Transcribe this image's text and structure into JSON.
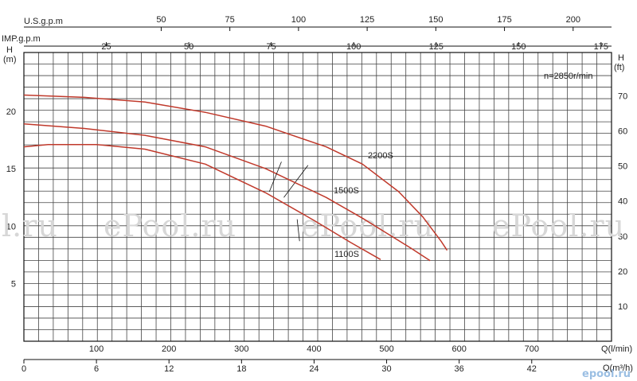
{
  "chart_data": {
    "type": "line",
    "speed_note": "n=2850r/min",
    "axes": {
      "top_outer_label": "U.S.g.p.m",
      "top_outer_ticks": [
        "50",
        "75",
        "100",
        "125",
        "150",
        "175",
        "200"
      ],
      "top_inner_label": "IMP.g.p.m",
      "top_inner_ticks": [
        "25",
        "50",
        "75",
        "100",
        "125",
        "150",
        "175"
      ],
      "left_label": "H",
      "left_unit": "(m)",
      "left_ticks": [
        "5",
        "10",
        "15",
        "20"
      ],
      "right_label": "H",
      "right_unit": "(ft)",
      "right_ticks": [
        "10",
        "20",
        "30",
        "40",
        "50",
        "60",
        "70"
      ],
      "bottom_inner_label": "Q(l/min)",
      "bottom_inner_ticks": [
        "100",
        "200",
        "300",
        "400",
        "500",
        "600",
        "700"
      ],
      "bottom_outer_label": "Q(m³/h)",
      "bottom_outer_ticks": [
        "0",
        "6",
        "12",
        "18",
        "24",
        "30",
        "36",
        "42"
      ],
      "xlim_m3h": [
        0,
        48.6
      ],
      "ylim_m": [
        0,
        25.1
      ],
      "grid": true
    },
    "x_unit": "m3/h",
    "y_unit": "m",
    "series": [
      {
        "name": "2200S",
        "color": "#c0392b",
        "x": [
          0,
          5,
          10,
          15,
          20,
          25,
          28,
          31,
          33,
          34.5,
          35
        ],
        "y": [
          21.4,
          21.2,
          20.8,
          19.9,
          18.7,
          16.9,
          15.4,
          13.0,
          10.8,
          8.7,
          7.9
        ]
      },
      {
        "name": "1500S",
        "color": "#c0392b",
        "x": [
          0,
          5,
          10,
          15,
          20,
          25,
          28,
          30,
          32,
          33.6
        ],
        "y": [
          18.9,
          18.5,
          17.9,
          16.9,
          15.0,
          12.5,
          10.7,
          9.4,
          8.1,
          7.0
        ]
      },
      {
        "name": "1100S",
        "color": "#c0392b",
        "x": [
          0,
          2,
          4,
          6,
          10,
          15,
          20,
          24,
          27,
          29.5
        ],
        "y": [
          16.9,
          17.1,
          17.1,
          17.1,
          16.7,
          15.4,
          12.9,
          10.5,
          8.6,
          7.1
        ]
      }
    ]
  },
  "watermark": "ePool.ru",
  "watermark_partial": "l.ru",
  "logo_text": "epool.ru"
}
